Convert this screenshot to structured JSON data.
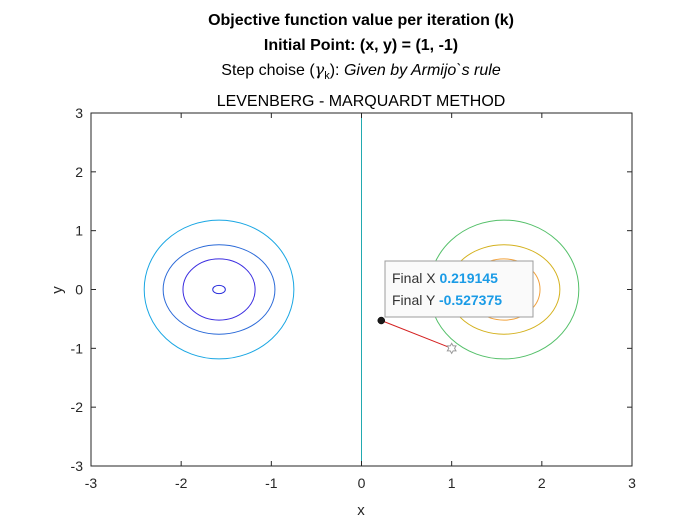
{
  "chart_data": {
    "type": "contour",
    "titles": {
      "line1": "Objective function value per iteration (k)",
      "line2": "Initial Point: (x, y) = (1, -1)",
      "line3_prefix": "Step choise (",
      "line3_symbol": "γ",
      "line3_sub": "k",
      "line3_suffix": "):",
      "line3_italic": "Given by Armijo`s rule",
      "line4": "LEVENBERG - MARQUARDT METHOD"
    },
    "xlabel": "x",
    "ylabel": "y",
    "xlim": [
      -3,
      3
    ],
    "ylim": [
      -3,
      3
    ],
    "xticks": [
      -3,
      -2,
      -1,
      0,
      1,
      2,
      3
    ],
    "yticks": [
      -3,
      -2,
      -1,
      0,
      1,
      2,
      3
    ],
    "xtick_labels": [
      "-3",
      "-2",
      "-1",
      "0",
      "1",
      "2",
      "3"
    ],
    "ytick_labels": [
      "-3",
      "-2",
      "-1",
      "0",
      "1",
      "2",
      "3"
    ],
    "grid": false,
    "zero_contour_x": 0,
    "zero_contour_color": "#22aab0",
    "left_contours": [
      {
        "cx": -1.58,
        "cy": 0,
        "rx": 0.07,
        "ry": 0.07,
        "color": "#2b2fdc"
      },
      {
        "cx": -1.58,
        "cy": 0,
        "rx": 0.4,
        "ry": 0.52,
        "color": "#3a2ce0"
      },
      {
        "cx": -1.58,
        "cy": 0,
        "rx": 0.62,
        "ry": 0.76,
        "color": "#2b6ad8"
      },
      {
        "cx": -1.58,
        "cy": 0,
        "rx": 0.83,
        "ry": 1.18,
        "color": "#19a6e3"
      }
    ],
    "right_contours": [
      {
        "cx": 1.58,
        "cy": 0,
        "rx": 0.4,
        "ry": 0.52,
        "color": "#f1a23c"
      },
      {
        "cx": 1.58,
        "cy": 0,
        "rx": 0.62,
        "ry": 0.76,
        "color": "#d4b11e"
      },
      {
        "cx": 1.58,
        "cy": 0,
        "rx": 0.83,
        "ry": 1.18,
        "color": "#55c06a"
      }
    ],
    "path": {
      "x": [
        1,
        0.219145
      ],
      "y": [
        -1,
        -0.527375
      ],
      "color": "#d42020"
    },
    "start_point": {
      "x": 1,
      "y": -1
    },
    "final_point": {
      "x": 0.219145,
      "y": -0.527375
    },
    "datatip": {
      "x_label": "Final X",
      "x_value": "0.219145",
      "y_label": "Final Y",
      "y_value": "-0.527375"
    }
  }
}
